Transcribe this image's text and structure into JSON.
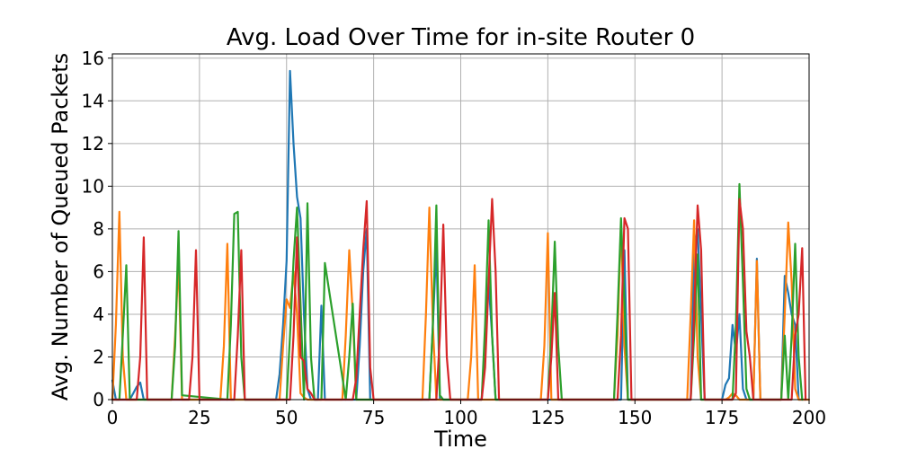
{
  "chart_data": {
    "type": "line",
    "title": "Avg. Load Over Time for in-site Router 0",
    "xlabel": "Time",
    "ylabel": "Avg. Number of Queued Packets",
    "xlim": [
      0,
      200
    ],
    "ylim": [
      0,
      16.2
    ],
    "xticks": [
      0,
      25,
      50,
      75,
      100,
      125,
      150,
      175,
      200
    ],
    "yticks": [
      0,
      2,
      4,
      6,
      8,
      10,
      12,
      14,
      16
    ],
    "grid": true,
    "legend": "none",
    "series": [
      {
        "color": "#1f77b4",
        "x": [
          0,
          1,
          5,
          6,
          7,
          8,
          9,
          10,
          47,
          48,
          49,
          50,
          51,
          52,
          53,
          54,
          55,
          56,
          57,
          58,
          59,
          60,
          61,
          62,
          70,
          71,
          72,
          73,
          74,
          75,
          91,
          92,
          93,
          94,
          95,
          96,
          97,
          106,
          107,
          108,
          109,
          110,
          111,
          146,
          147,
          148,
          166,
          167,
          168,
          169,
          170,
          175,
          176,
          177,
          178,
          179,
          180,
          181,
          182,
          184,
          185,
          186,
          192,
          193,
          194,
          195,
          196,
          197,
          198,
          199
        ],
        "values": [
          0.9,
          0.0,
          0.0,
          0.3,
          0.6,
          0.8,
          0.0,
          0.0,
          0.0,
          1.2,
          3.5,
          6.5,
          15.4,
          12.0,
          9.5,
          8.5,
          4.0,
          0.5,
          0.0,
          0.0,
          0.0,
          4.4,
          0.0,
          0.0,
          0.0,
          2.5,
          6.0,
          8.0,
          0.0,
          0.0,
          0.0,
          3.5,
          7.2,
          0.0,
          0.0,
          0.0,
          0.0,
          0.0,
          2.5,
          5.5,
          3.0,
          0.0,
          0.0,
          0.0,
          7.0,
          0.0,
          0.0,
          7.0,
          8.0,
          4.0,
          0.0,
          0.0,
          0.7,
          1.0,
          3.5,
          2.2,
          4.0,
          0.5,
          0.0,
          0.0,
          6.6,
          0.0,
          0.0,
          5.8,
          5.0,
          4.0,
          3.5,
          0.0,
          0.0,
          0.0
        ]
      },
      {
        "color": "#ff7f0e",
        "x": [
          0,
          1,
          2,
          3,
          4,
          16,
          17,
          18,
          19,
          20,
          31,
          32,
          33,
          34,
          48,
          49,
          50,
          51,
          52,
          53,
          54,
          55,
          56,
          57,
          66,
          67,
          68,
          69,
          70,
          89,
          90,
          91,
          92,
          93,
          102,
          103,
          104,
          105,
          123,
          124,
          125,
          126,
          144,
          145,
          146,
          147,
          148,
          165,
          166,
          167,
          168,
          169,
          176,
          177,
          178,
          179,
          180,
          181,
          184,
          185,
          186,
          192,
          193,
          194,
          195,
          196,
          197,
          198,
          199,
          200
        ],
        "values": [
          0.0,
          3.5,
          8.8,
          2.0,
          0.0,
          0.0,
          0.0,
          3.0,
          6.5,
          0.0,
          0.0,
          2.5,
          7.3,
          0.0,
          0.0,
          2.5,
          4.7,
          4.3,
          6.0,
          4.0,
          0.3,
          0.1,
          0.0,
          0.0,
          0.0,
          3.0,
          7.0,
          4.0,
          0.0,
          0.0,
          4.0,
          9.0,
          3.5,
          0.0,
          0.0,
          2.0,
          6.3,
          0.0,
          0.0,
          2.5,
          7.8,
          0.0,
          0.0,
          3.0,
          8.3,
          2.5,
          0.0,
          0.0,
          4.0,
          8.4,
          2.0,
          0.0,
          0.0,
          0.1,
          0.3,
          0.2,
          0.0,
          0.0,
          0.0,
          6.5,
          0.0,
          0.0,
          4.0,
          8.3,
          5.5,
          0.5,
          0.0,
          0.0,
          0.0,
          0.0
        ]
      },
      {
        "color": "#2ca02c",
        "x": [
          0,
          1,
          2,
          3,
          4,
          5,
          17,
          18,
          19,
          20,
          33,
          34,
          35,
          36,
          37,
          38,
          50,
          51,
          52,
          53,
          54,
          55,
          56,
          57,
          58,
          59,
          60,
          61,
          67,
          68,
          69,
          70,
          91,
          92,
          93,
          94,
          95,
          106,
          107,
          108,
          109,
          110,
          125,
          126,
          127,
          128,
          129,
          144,
          145,
          146,
          147,
          148,
          166,
          167,
          168,
          169,
          178,
          179,
          180,
          181,
          182,
          183,
          192,
          193,
          194,
          195,
          196,
          197,
          198
        ],
        "values": [
          0.0,
          0.0,
          0.0,
          3.0,
          6.3,
          0.0,
          0.0,
          2.5,
          7.9,
          0.2,
          0.0,
          3.5,
          8.7,
          8.8,
          2.0,
          0.0,
          0.0,
          3.0,
          6.5,
          9.0,
          4.5,
          0.0,
          9.2,
          2.0,
          0.0,
          0.0,
          0.0,
          6.4,
          0.0,
          2.0,
          4.5,
          0.0,
          0.0,
          3.5,
          9.1,
          0.2,
          0.0,
          0.0,
          3.5,
          8.4,
          3.0,
          0.0,
          0.0,
          3.0,
          7.4,
          2.5,
          0.0,
          0.0,
          4.0,
          8.5,
          4.5,
          0.0,
          0.0,
          3.0,
          6.8,
          0.0,
          0.0,
          3.5,
          10.1,
          5.5,
          0.5,
          0.0,
          0.0,
          3.0,
          0.0,
          3.0,
          7.3,
          2.0,
          0.0
        ]
      },
      {
        "color": "#d62728",
        "x": [
          0,
          6,
          7,
          8,
          9,
          10,
          22,
          23,
          24,
          25,
          35,
          36,
          37,
          38,
          51,
          52,
          53,
          54,
          55,
          56,
          57,
          58,
          69,
          70,
          71,
          72,
          73,
          74,
          75,
          93,
          94,
          95,
          96,
          97,
          106,
          107,
          108,
          109,
          110,
          111,
          125,
          126,
          127,
          128,
          145,
          146,
          147,
          148,
          149,
          166,
          167,
          168,
          169,
          170,
          178,
          179,
          180,
          181,
          182,
          183,
          184,
          195,
          196,
          197,
          198,
          199
        ],
        "values": [
          0.0,
          0.0,
          0.0,
          2.0,
          7.6,
          0.0,
          0.0,
          2.0,
          7.0,
          0.0,
          0.0,
          3.0,
          7.0,
          0.0,
          0.0,
          3.0,
          7.6,
          2.0,
          1.8,
          0.5,
          0.3,
          0.0,
          0.0,
          1.0,
          4.0,
          7.0,
          9.3,
          1.5,
          0.0,
          0.0,
          3.0,
          8.2,
          2.0,
          0.0,
          0.0,
          1.5,
          5.5,
          9.4,
          6.0,
          0.0,
          0.0,
          2.0,
          5.0,
          0.0,
          0.0,
          3.0,
          8.5,
          8.0,
          0.0,
          0.0,
          4.0,
          9.1,
          7.0,
          0.0,
          0.0,
          0.3,
          9.4,
          8.0,
          3.2,
          2.0,
          0.0,
          0.0,
          3.0,
          4.0,
          7.1,
          0.0
        ]
      }
    ]
  }
}
